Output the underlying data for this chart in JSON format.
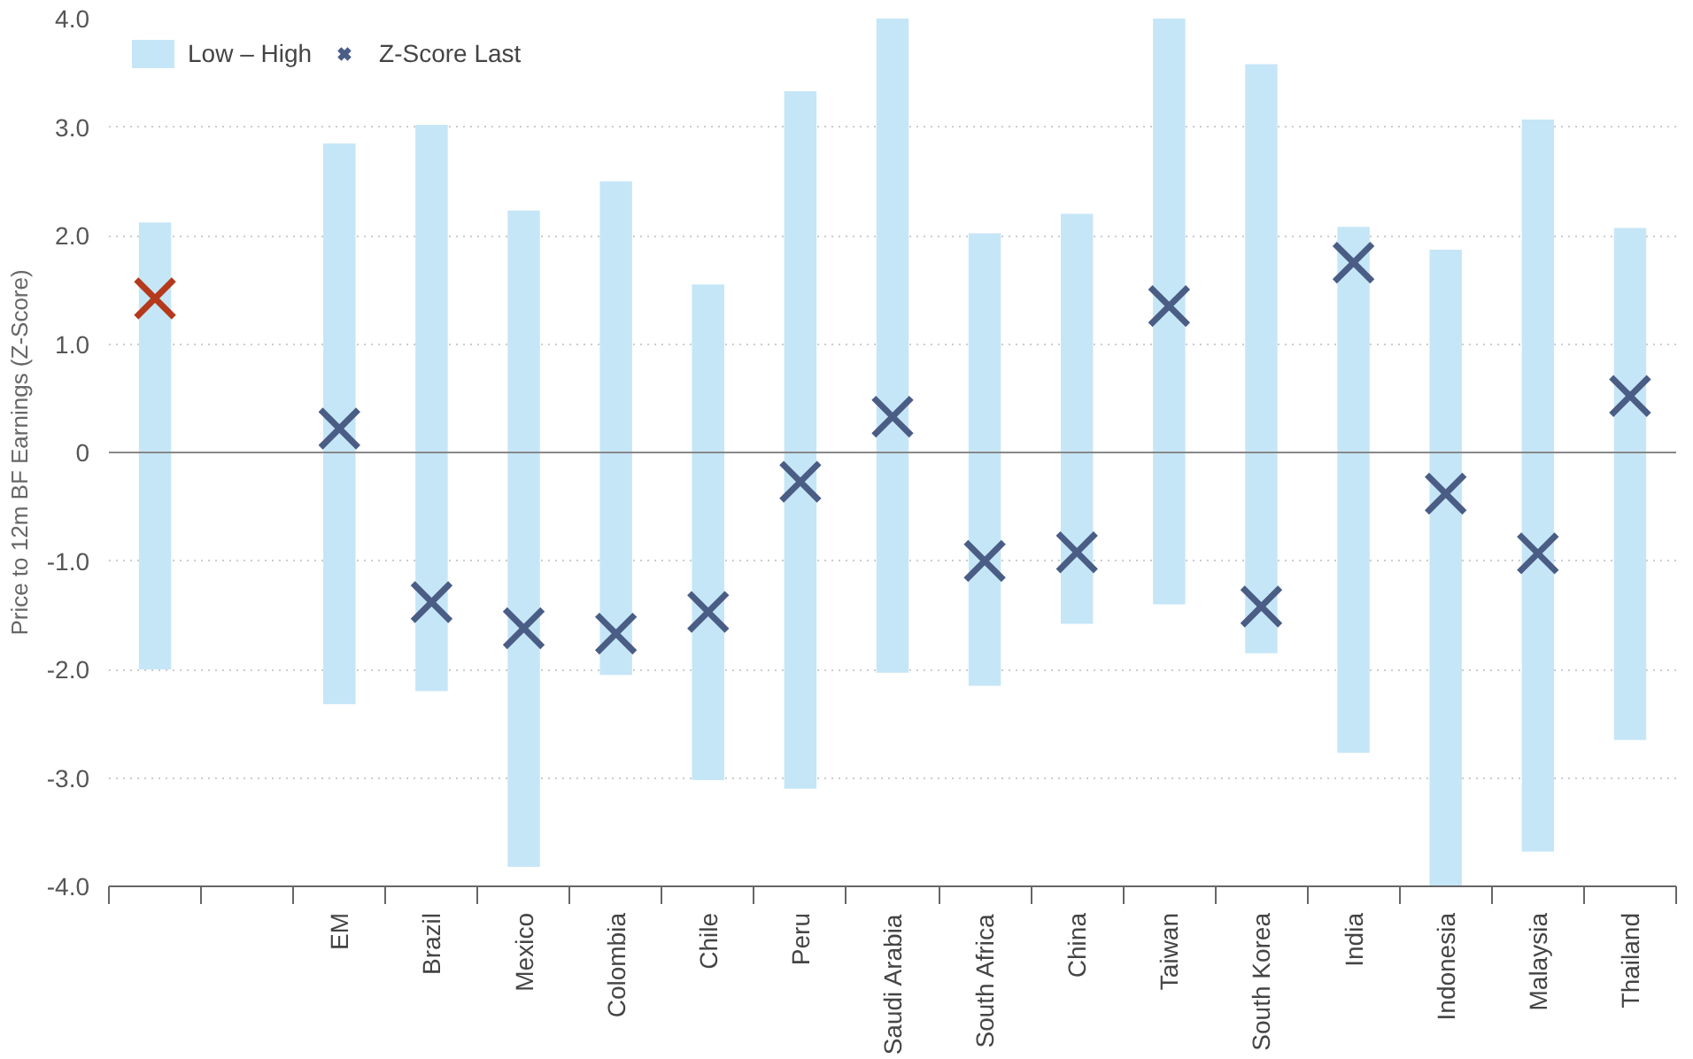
{
  "chart_data": {
    "type": "bar",
    "ylabel": "Price to 12m BF Earnings (Z-Score)",
    "categories": [
      null,
      null,
      "EM",
      "Brazil",
      "Mexico",
      "Colombia",
      "Chile",
      "Peru",
      "Saudi Arabia",
      "South Africa",
      "China",
      "Taiwan",
      "South Korea",
      "India",
      "Indonesia",
      "Malaysia",
      "Thailand"
    ],
    "series": [
      {
        "name": "Low – High",
        "color": "#c5e6f7",
        "base": [
          -2.0,
          null,
          -2.32,
          -2.2,
          -3.82,
          -2.05,
          -3.02,
          -3.1,
          -2.03,
          -2.15,
          -1.58,
          -1.4,
          -1.85,
          -2.77,
          -4.0,
          -3.68,
          -2.65
        ],
        "values": [
          4.12,
          null,
          5.17,
          5.22,
          6.05,
          4.55,
          4.57,
          6.43,
          6.03,
          4.17,
          3.78,
          5.4,
          5.43,
          4.85,
          5.87,
          6.75,
          4.72
        ]
      },
      {
        "name": "Z-Score Last",
        "type": "scatter",
        "marker": "cross",
        "color": "#4a5d85",
        "colors": [
          "#b5391b",
          null,
          "#4a5d85",
          "#4a5d85",
          "#4a5d85",
          "#4a5d85",
          "#4a5d85",
          "#4a5d85",
          "#4a5d85",
          "#4a5d85",
          "#4a5d85",
          "#4a5d85",
          "#4a5d85",
          "#4a5d85",
          "#4a5d85",
          "#4a5d85",
          "#4a5d85"
        ],
        "values": [
          1.42,
          null,
          0.22,
          -1.38,
          -1.62,
          -1.67,
          -1.47,
          -0.27,
          0.33,
          -1.0,
          -0.92,
          1.35,
          -1.42,
          1.75,
          -0.38,
          -0.93,
          0.52
        ]
      }
    ],
    "ylim": [
      -4.0,
      4.0
    ],
    "yticks": [
      {
        "value": -4,
        "label": "-4.0"
      },
      {
        "value": -3,
        "label": "-3.0"
      },
      {
        "value": -2,
        "label": "-2.0"
      },
      {
        "value": -1,
        "label": "-1.0"
      },
      0,
      {
        "value": 1,
        "label": "1.0"
      },
      {
        "value": 2,
        "label": "2.0"
      },
      {
        "value": 3,
        "label": "3.0"
      },
      {
        "value": 4,
        "label": "4.0"
      }
    ],
    "ref_lines": [
      {
        "axis": "y",
        "value": 0,
        "color": "#888888"
      }
    ],
    "grid": "y",
    "legend": "top left"
  }
}
